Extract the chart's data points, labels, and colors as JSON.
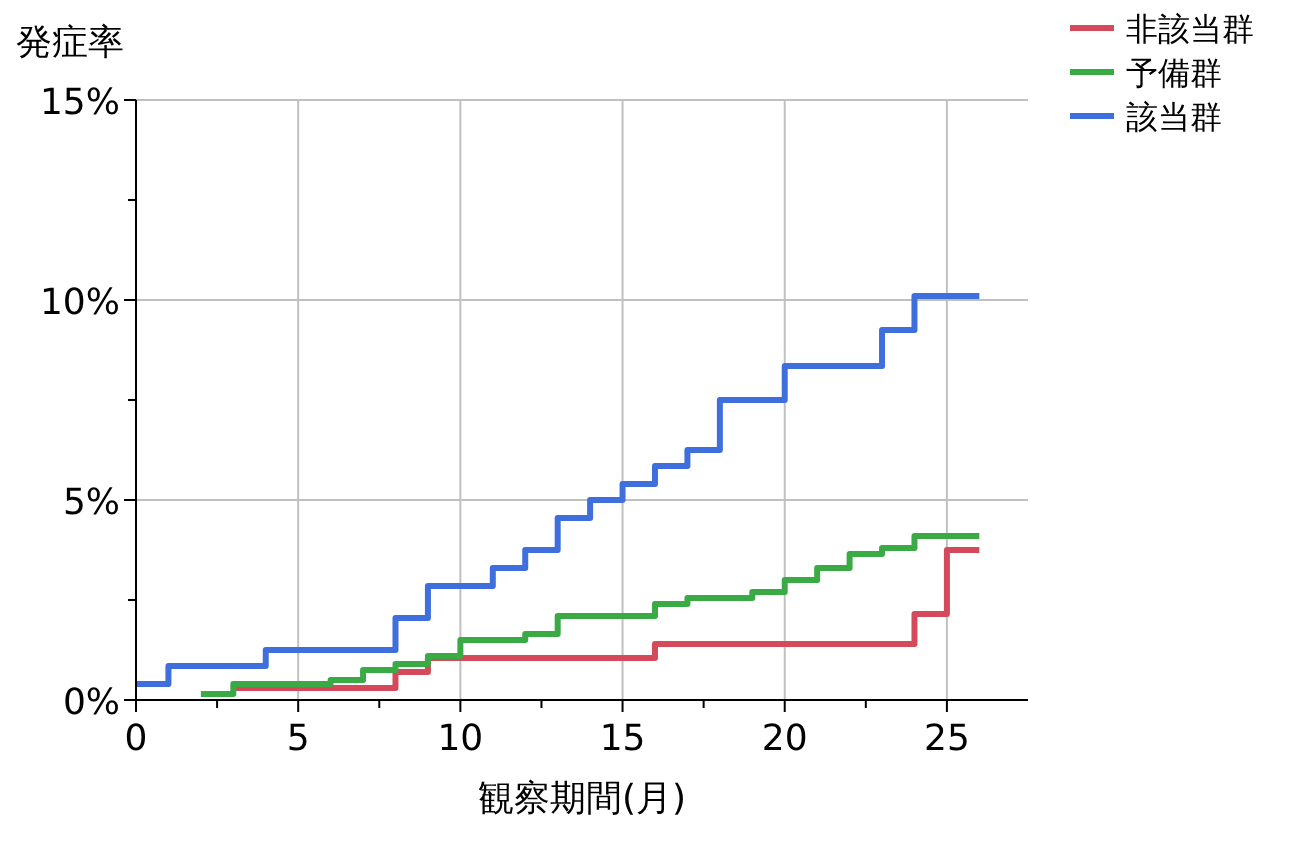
{
  "chart_data": {
    "type": "step",
    "xlabel": "観察期間(月)",
    "ylabel": "発症率",
    "xlim": [
      0,
      27.5
    ],
    "ylim": [
      0,
      15
    ],
    "xticks": [
      0,
      {
        "value": 2.5,
        "label": null
      },
      5,
      {
        "value": 7.5,
        "label": null
      },
      10,
      {
        "value": 12.5,
        "label": null
      },
      15,
      {
        "value": 17.5,
        "label": null
      },
      20,
      {
        "value": 22.5,
        "label": null
      },
      25
    ],
    "yticks": [
      {
        "value": 0,
        "label": "0%"
      },
      {
        "value": 2.5,
        "label": null
      },
      {
        "value": 5,
        "label": "5%"
      },
      {
        "value": 7.5,
        "label": null
      },
      {
        "value": 10,
        "label": "10%"
      },
      {
        "value": 12.5,
        "label": null
      },
      {
        "value": 15,
        "label": "15%"
      }
    ],
    "grid": true,
    "legend": "top right",
    "line_style": "solid",
    "marker": "none",
    "series": [
      {
        "name": "非該当群",
        "color": "#d44a5a",
        "x": [
          3,
          8,
          9,
          16,
          24,
          25,
          26
        ],
        "values": [
          0.3,
          0.7,
          1.05,
          1.4,
          2.15,
          3.75,
          3.75
        ]
      },
      {
        "name": "予備群",
        "color": "#3aaa45",
        "x": [
          2,
          3,
          6,
          7,
          8,
          9,
          10,
          12,
          13,
          16,
          17,
          19,
          20,
          21,
          22,
          23,
          24,
          26
        ],
        "values": [
          0.15,
          0.4,
          0.5,
          0.75,
          0.9,
          1.1,
          1.5,
          1.65,
          2.1,
          2.4,
          2.55,
          2.7,
          3.0,
          3.3,
          3.65,
          3.8,
          4.1,
          4.1
        ]
      },
      {
        "name": "該当群",
        "color": "#3e6fdc",
        "x": [
          0,
          1,
          4,
          8,
          9,
          11,
          12,
          13,
          14,
          15,
          16,
          17,
          18,
          20,
          23,
          24,
          26
        ],
        "values": [
          0.4,
          0.85,
          1.25,
          2.05,
          2.85,
          3.3,
          3.75,
          4.55,
          5.0,
          5.4,
          5.85,
          6.25,
          7.5,
          8.35,
          9.25,
          10.1,
          10.1
        ]
      }
    ]
  }
}
